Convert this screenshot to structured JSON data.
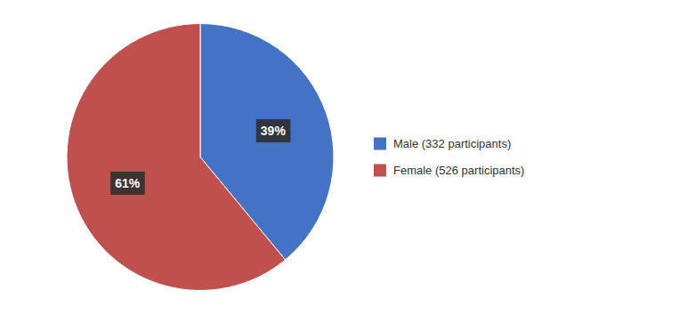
{
  "chart_data": {
    "type": "pie",
    "categories": [
      "Male (332 participants)",
      "Female (526 participants)"
    ],
    "values": [
      39,
      61
    ],
    "value_labels": [
      "39%",
      "61%"
    ],
    "colors": [
      "#4472C4",
      "#C0504D"
    ],
    "data_labels": true,
    "legend": "right"
  }
}
